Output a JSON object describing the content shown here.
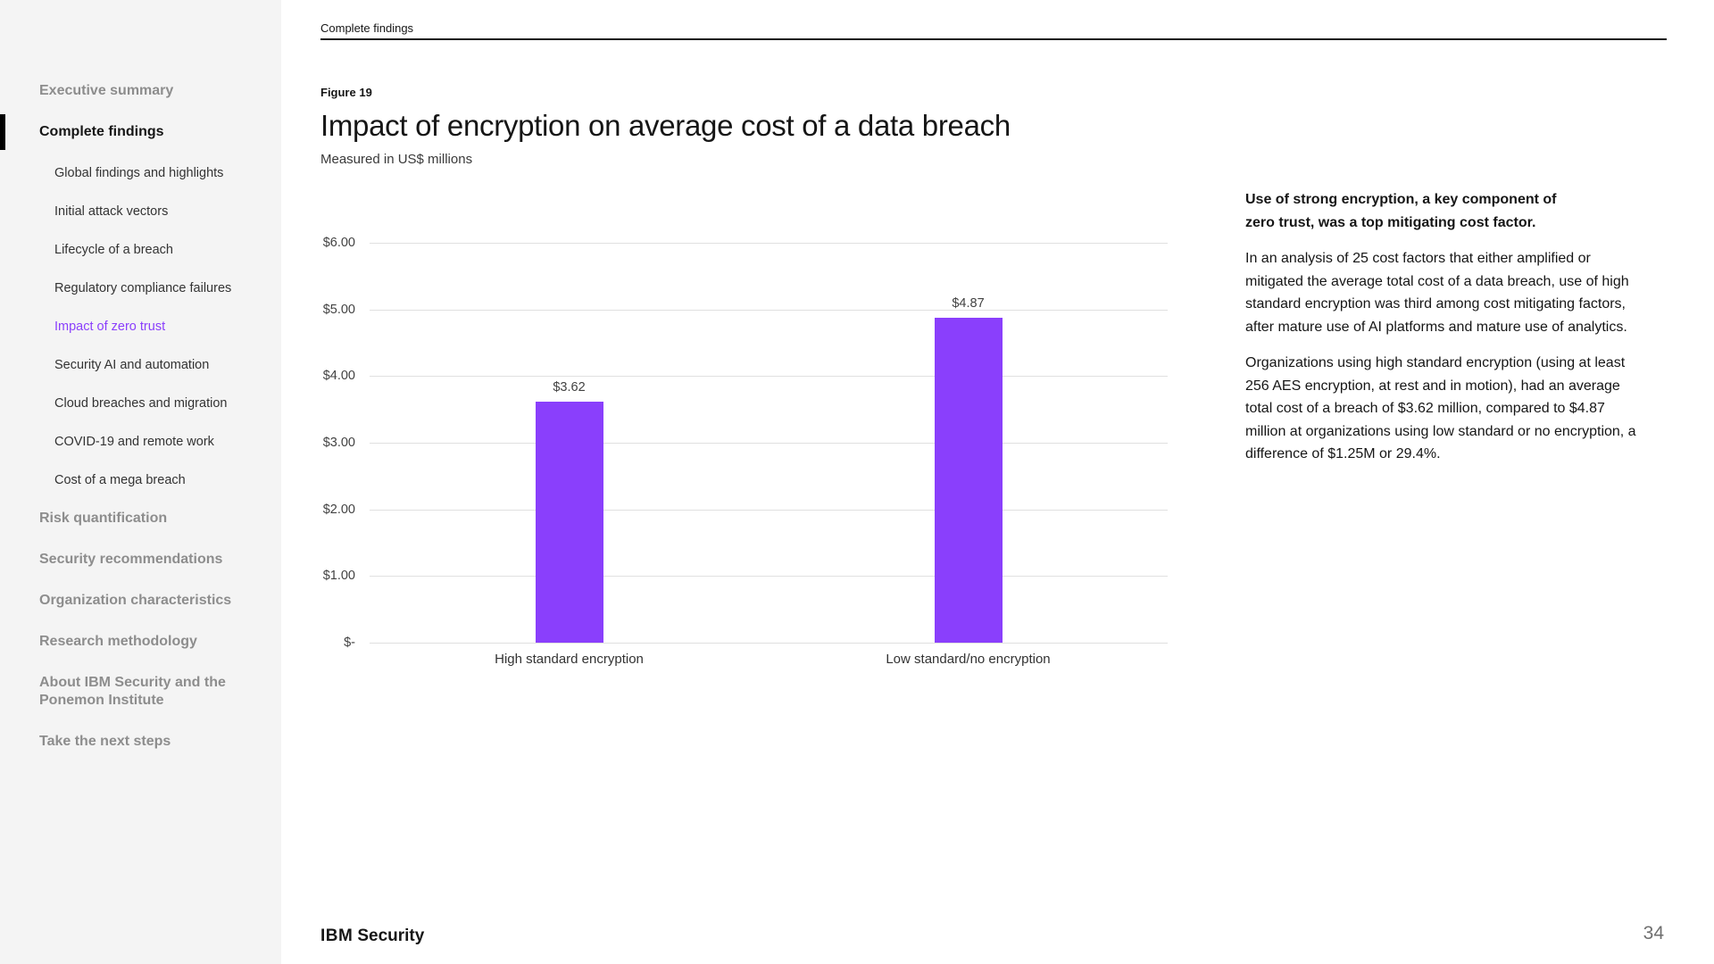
{
  "header": {
    "section_label": "Complete findings"
  },
  "sidebar": {
    "items": [
      {
        "label": "Executive summary",
        "level": 1,
        "state": "default"
      },
      {
        "label": "Complete findings",
        "level": 1,
        "state": "current-section"
      },
      {
        "label": "Global findings and highlights",
        "level": 2,
        "state": "default"
      },
      {
        "label": "Initial attack vectors",
        "level": 2,
        "state": "default"
      },
      {
        "label": "Lifecycle of a breach",
        "level": 2,
        "state": "default"
      },
      {
        "label": "Regulatory compliance failures",
        "level": 2,
        "state": "default"
      },
      {
        "label": "Impact of zero trust",
        "level": 2,
        "state": "active"
      },
      {
        "label": "Security AI and automation",
        "level": 2,
        "state": "default"
      },
      {
        "label": "Cloud breaches and migration",
        "level": 2,
        "state": "default"
      },
      {
        "label": "COVID-19 and remote work",
        "level": 2,
        "state": "default"
      },
      {
        "label": "Cost of a mega breach",
        "level": 2,
        "state": "default"
      },
      {
        "label": "Risk quantification",
        "level": 1,
        "state": "default"
      },
      {
        "label": "Security recommendations",
        "level": 1,
        "state": "default"
      },
      {
        "label": "Organization characteristics",
        "level": 1,
        "state": "default"
      },
      {
        "label": "Research methodology",
        "level": 1,
        "state": "default"
      },
      {
        "label": "About IBM Security and the Ponemon Institute",
        "level": 1,
        "state": "default"
      },
      {
        "label": "Take the next steps",
        "level": 1,
        "state": "default"
      }
    ]
  },
  "figure": {
    "label": "Figure 19",
    "title": "Impact of encryption on average cost of a data breach",
    "subtitle": "Measured in US$ millions"
  },
  "chart_data": {
    "type": "bar",
    "title": "Impact of encryption on average cost of a data breach",
    "subtitle": "Measured in US$ millions",
    "unit": "US$ millions",
    "categories": [
      "High standard encryption",
      "Low standard/no encryption"
    ],
    "values": [
      3.62,
      4.87
    ],
    "value_labels": [
      "$3.62",
      "$4.87"
    ],
    "y_ticks": [
      "$6.00",
      "$5.00",
      "$4.00",
      "$3.00",
      "$2.00",
      "$1.00",
      "$-"
    ],
    "ylim": [
      0,
      6
    ],
    "grid": true,
    "legend": "none",
    "bar_color": "#8a3ffc"
  },
  "aside": {
    "heading_lines": [
      "Use of strong encryption, a key component of",
      "zero trust, was a top mitigating cost factor."
    ],
    "paragraphs": [
      "In an analysis of 25 cost factors that either amplified or mitigated the average total cost of a data breach, use of high standard encryption was third among cost mitigating factors, after mature use of AI platforms and mature use of analytics.",
      "Organizations using high standard encryption (using at least 256 AES encryption, at rest and in motion), had an average total cost of a breach of $3.62 million, compared to $4.87 million at organizations using low standard or no encryption, a difference of $1.25M or 29.4%."
    ]
  },
  "footer": {
    "brand_ibm": "IBM",
    "brand_product": "Security",
    "page_number": "34"
  },
  "colors": {
    "accent_purple": "#8a3ffc",
    "sidebar_bg": "#f4f4f4",
    "gridline": "#e0e0e0",
    "baseline": "#c6c6c6",
    "text_dark": "#161616",
    "text_muted": "#8d8d8d"
  }
}
